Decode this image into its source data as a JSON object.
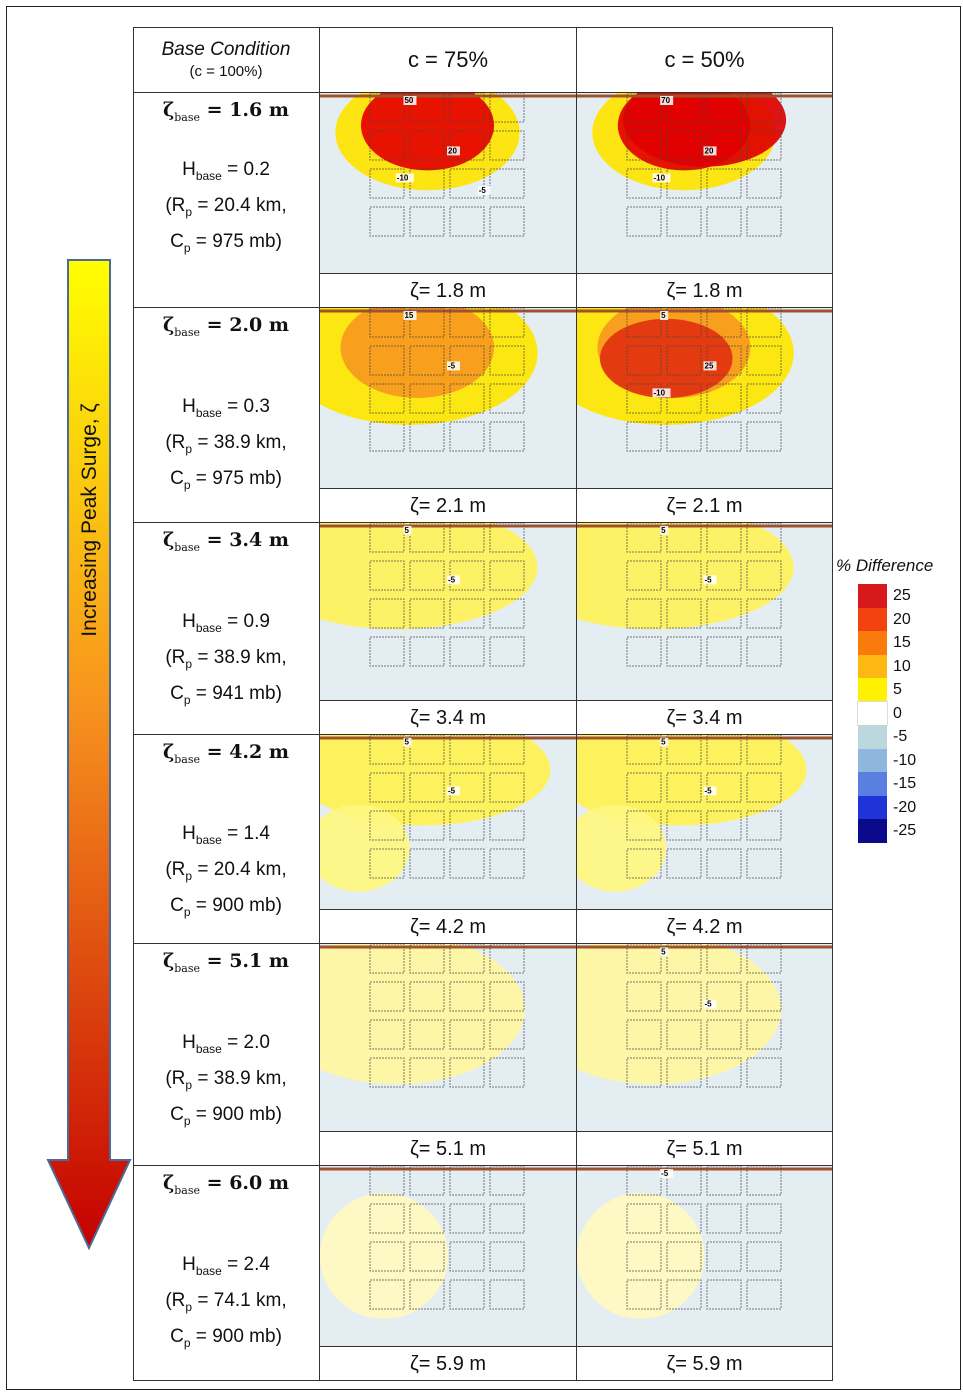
{
  "header": {
    "base_title": "Base Condition",
    "base_sub": "(c = 100%)",
    "col_75": "c = 75%",
    "col_50": "c = 50%"
  },
  "rows": [
    {
      "zeta_base": "1.6 m",
      "H": "0.2",
      "Rp": "20.4 km",
      "Cp": "975 mb",
      "z75": "ζ= 1.8 m",
      "z50": "ζ= 1.8 m",
      "labels75": [
        "50",
        "20",
        "-10",
        "-5"
      ],
      "labels50": [
        "70",
        "20",
        "-10"
      ],
      "level": 1
    },
    {
      "zeta_base": "2.0 m",
      "H": "0.3",
      "Rp": "38.9 km",
      "Cp": "975 mb",
      "z75": "ζ= 2.1 m",
      "z50": "ζ= 2.1 m",
      "labels75": [
        "15",
        "-5"
      ],
      "labels50": [
        "5",
        "25",
        "-10"
      ],
      "level": 2
    },
    {
      "zeta_base": "3.4 m",
      "H": "0.9",
      "Rp": "38.9 km",
      "Cp": "941 mb",
      "z75": "ζ= 3.4 m",
      "z50": "ζ= 3.4 m",
      "labels75": [
        "5",
        "-5"
      ],
      "labels50": [
        "5",
        "-5"
      ],
      "level": 3
    },
    {
      "zeta_base": "4.2 m",
      "H": "1.4",
      "Rp": "20.4 km",
      "Cp": "900 mb",
      "z75": "ζ= 4.2 m",
      "z50": "ζ= 4.2 m",
      "labels75": [
        "5",
        "-5"
      ],
      "labels50": [
        "5",
        "-5"
      ],
      "level": 4
    },
    {
      "zeta_base": "5.1 m",
      "H": "2.0",
      "Rp": "38.9 km",
      "Cp": "900 mb",
      "z75": "ζ= 5.1 m",
      "z50": "ζ= 5.1 m",
      "labels75": [],
      "labels50": [
        "5",
        "-5"
      ],
      "level": 5
    },
    {
      "zeta_base": "6.0 m",
      "H": "2.4",
      "Rp": "74.1 km",
      "Cp": "900 mb",
      "z75": "ζ= 5.9 m",
      "z50": "ζ= 5.9 m",
      "labels75": [],
      "labels50": [
        "-5"
      ],
      "level": 6
    }
  ],
  "arrow_label": "Increasing Peak Surge, ζ",
  "legend": {
    "title": "% Difference",
    "items": [
      {
        "label": "25",
        "color": "#d7191c"
      },
      {
        "label": "20",
        "color": "#f2420f"
      },
      {
        "label": "15",
        "color": "#fa7a0c"
      },
      {
        "label": "10",
        "color": "#fdb812"
      },
      {
        "label": "5",
        "color": "#fff200"
      },
      {
        "label": "0",
        "color": "#ffffff"
      },
      {
        "label": "-5",
        "color": "#bcd7de"
      },
      {
        "label": "-10",
        "color": "#8fb6dc"
      },
      {
        "label": "-15",
        "color": "#5b7fe0"
      },
      {
        "label": "-20",
        "color": "#1f33d8"
      },
      {
        "label": "-25",
        "color": "#0a0a8a"
      }
    ]
  },
  "colors": {
    "coast_line": "#a0522d",
    "building_outline": "#444444"
  }
}
